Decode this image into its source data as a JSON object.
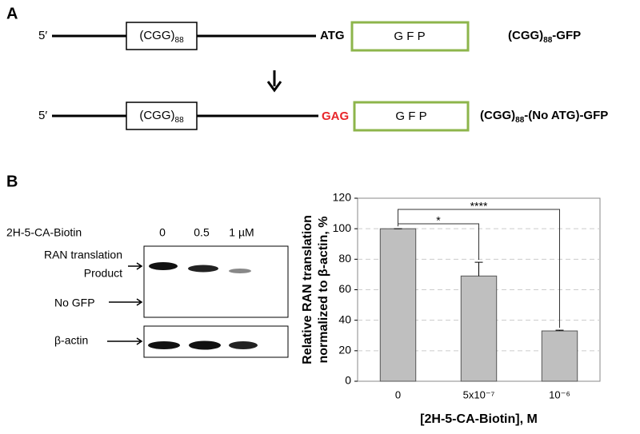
{
  "panel_a": {
    "label": "A",
    "constructs": [
      {
        "five_prime": "5′",
        "repeat": "(CGG)",
        "repeat_sub": "88",
        "codon": "ATG",
        "reporter": "G F P",
        "name": "(CGG)",
        "name_sub": "88",
        "name_suffix": "-GFP"
      },
      {
        "five_prime": "5′",
        "repeat": "(CGG)",
        "repeat_sub": "88",
        "codon": "GAG",
        "reporter": "G F P",
        "name": "(CGG)",
        "name_sub": "88",
        "name_suffix": "-(No ATG)-GFP"
      }
    ]
  },
  "panel_b": {
    "label": "B",
    "blot": {
      "treatment": "2H-5-CA-Biotin",
      "doses": [
        "0",
        "0.5",
        "1 µM"
      ],
      "rows": [
        [
          "RAN translation",
          "Product"
        ],
        [
          "No GFP"
        ],
        [
          "β-actin"
        ]
      ]
    }
  },
  "chart_data": {
    "type": "bar",
    "categories": [
      "0",
      "5x10⁻⁷",
      "10⁻⁶"
    ],
    "values": [
      100,
      69,
      33
    ],
    "errors": [
      0,
      9,
      0.5
    ],
    "color": "#bfbfbf",
    "ylim": [
      0,
      120
    ],
    "yticks": [
      0,
      20,
      40,
      60,
      80,
      100,
      120
    ],
    "grid": true,
    "ylabel": [
      "Relative RAN translation",
      "normalized to β-actin, %"
    ],
    "xlabel": "[2H-5-CA-Biotin], M",
    "annotations": [
      "*",
      "****"
    ]
  }
}
